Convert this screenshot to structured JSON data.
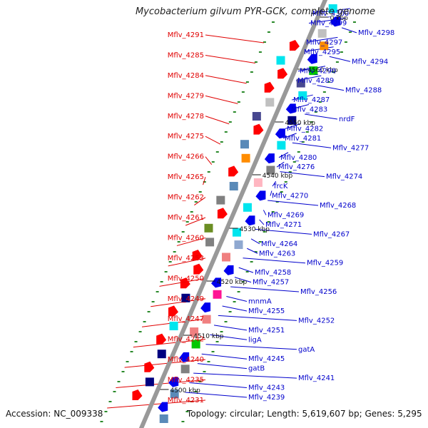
{
  "title": "Mycobacterium gilvum PYR-GCK, complete genome",
  "footer": {
    "accession": "Accession: NC_009338",
    "topology": "Topology: circular; Length: 5,619,607 bp; Genes: 5,295"
  },
  "colors": {
    "forward_label": "#e00000",
    "reverse_label": "#0000cc",
    "backbone": "#999999",
    "tick_dots": "#2a8a2a"
  },
  "ticks": [
    {
      "label": "4500 kbp"
    },
    {
      "label": "4510 kbp"
    },
    {
      "label": "4520 kbp"
    },
    {
      "label": "4530 kbp"
    },
    {
      "label": "4540 kbp"
    },
    {
      "label": "4550 kbp"
    },
    {
      "label": "4560 kbp"
    },
    {
      "label": "0 kbp"
    }
  ],
  "left_labels": [
    {
      "text": "Mflv_4291"
    },
    {
      "text": "Mflv_4285"
    },
    {
      "text": "Mflv_4284"
    },
    {
      "text": "Mflv_4279"
    },
    {
      "text": "Mflv_4278"
    },
    {
      "text": "Mflv_4275"
    },
    {
      "text": "Mflv_4266"
    },
    {
      "text": "Mflv_4265"
    },
    {
      "text": "Mflv_4262"
    },
    {
      "text": "Mflv_4261"
    },
    {
      "text": "Mflv_4260"
    },
    {
      "text": "Mflv_4253"
    },
    {
      "text": "Mflv_4250"
    },
    {
      "text": "Mflv_4249"
    },
    {
      "text": "Mflv_4247"
    },
    {
      "text": "Mflv_4242"
    },
    {
      "text": "Mflv_4240"
    },
    {
      "text": "Mflv_4235"
    },
    {
      "text": "Mflv_4231"
    }
  ],
  "right_labels": [
    {
      "text": "Mflv_4300"
    },
    {
      "text": "Mflv_4299"
    },
    {
      "text": "Mflv_4298"
    },
    {
      "text": "Mflv_4297"
    },
    {
      "text": "Mflv_4295"
    },
    {
      "text": "Mflv_4294"
    },
    {
      "text": "Mflv_4290"
    },
    {
      "text": "Mflv_4289"
    },
    {
      "text": "Mflv_4288"
    },
    {
      "text": "Mflv_4287"
    },
    {
      "text": "Mflv_4283"
    },
    {
      "text": "nrdF"
    },
    {
      "text": "Mflv_4282"
    },
    {
      "text": "Mflv_4281"
    },
    {
      "text": "Mflv_4277"
    },
    {
      "text": "Mflv_4280"
    },
    {
      "text": "Mflv_4276"
    },
    {
      "text": "Mflv_4274"
    },
    {
      "text": "frcK"
    },
    {
      "text": "Mflv_4270"
    },
    {
      "text": "Mflv_4268"
    },
    {
      "text": "Mflv_4269"
    },
    {
      "text": "Mflv_4271"
    },
    {
      "text": "Mflv_4267"
    },
    {
      "text": "Mflv_4264"
    },
    {
      "text": "Mflv_4263"
    },
    {
      "text": "Mflv_4259"
    },
    {
      "text": "Mflv_4258"
    },
    {
      "text": "Mflv_4257"
    },
    {
      "text": "Mflv_4256"
    },
    {
      "text": "mnmA"
    },
    {
      "text": "Mflv_4255"
    },
    {
      "text": "Mflv_4252"
    },
    {
      "text": "Mflv_4251"
    },
    {
      "text": "ligA"
    },
    {
      "text": "gatA"
    },
    {
      "text": "Mflv_4245"
    },
    {
      "text": "gatB"
    },
    {
      "text": "Mflv_4241"
    },
    {
      "text": "Mflv_4243"
    },
    {
      "text": "Mflv_4239"
    }
  ],
  "forward_features": [
    {
      "color": "#ff0000",
      "shape": "arrow"
    },
    {
      "color": "#00e5ee",
      "shape": "box"
    },
    {
      "color": "#ff0000",
      "shape": "arrow"
    },
    {
      "color": "#ff0000",
      "shape": "arrow"
    },
    {
      "color": "#c0c0c0",
      "shape": "box"
    },
    {
      "color": "#484890",
      "shape": "box"
    },
    {
      "color": "#ff0000",
      "shape": "arrow"
    },
    {
      "color": "#5a8ab8",
      "shape": "box"
    },
    {
      "color": "#ff8c00",
      "shape": "box"
    },
    {
      "color": "#ff0000",
      "shape": "arrow"
    },
    {
      "color": "#5a8ab8",
      "shape": "box"
    },
    {
      "color": "#808080",
      "shape": "box"
    },
    {
      "color": "#ff0000",
      "shape": "arrow"
    },
    {
      "color": "#6b8e23",
      "shape": "box"
    },
    {
      "color": "#808080",
      "shape": "box"
    },
    {
      "color": "#ff0000",
      "shape": "arrow"
    },
    {
      "color": "#ff0000",
      "shape": "arrow"
    },
    {
      "color": "#ff0000",
      "shape": "arrow"
    },
    {
      "color": "#000080",
      "shape": "box"
    },
    {
      "color": "#ff0000",
      "shape": "arrow"
    },
    {
      "color": "#00e5ee",
      "shape": "box"
    },
    {
      "color": "#ff0000",
      "shape": "arrow"
    },
    {
      "color": "#000080",
      "shape": "box"
    },
    {
      "color": "#ff0000",
      "shape": "arrow"
    },
    {
      "color": "#000080",
      "shape": "box"
    },
    {
      "color": "#ff0000",
      "shape": "arrow"
    }
  ],
  "reverse_features": [
    {
      "color": "#00e5ee",
      "shape": "box"
    },
    {
      "color": "#0000ee",
      "shape": "arrow"
    },
    {
      "color": "#c0c0c0",
      "shape": "box"
    },
    {
      "color": "#ff8c00",
      "shape": "box"
    },
    {
      "color": "#0000ee",
      "shape": "arrow"
    },
    {
      "color": "#00c800",
      "shape": "box"
    },
    {
      "color": "#484890",
      "shape": "box"
    },
    {
      "color": "#00e5ee",
      "shape": "box"
    },
    {
      "color": "#0000ee",
      "shape": "arrow"
    },
    {
      "color": "#000080",
      "shape": "box"
    },
    {
      "color": "#0000ee",
      "shape": "arrow"
    },
    {
      "color": "#00e5ee",
      "shape": "box"
    },
    {
      "color": "#0000ee",
      "shape": "arrow"
    },
    {
      "color": "#808080",
      "shape": "box"
    },
    {
      "color": "#ffb6c1",
      "shape": "box"
    },
    {
      "color": "#0000ee",
      "shape": "arrow"
    },
    {
      "color": "#00e5ee",
      "shape": "box"
    },
    {
      "color": "#0000ee",
      "shape": "arrow"
    },
    {
      "color": "#00e5ee",
      "shape": "box"
    },
    {
      "color": "#8fa8d0",
      "shape": "box"
    },
    {
      "color": "#f08080",
      "shape": "box"
    },
    {
      "color": "#0000ee",
      "shape": "arrow"
    },
    {
      "color": "#0000ee",
      "shape": "arrow"
    },
    {
      "color": "#ff1493",
      "shape": "box"
    },
    {
      "color": "#0000ee",
      "shape": "arrow"
    },
    {
      "color": "#f08080",
      "shape": "box"
    },
    {
      "color": "#f08080",
      "shape": "box"
    },
    {
      "color": "#00c800",
      "shape": "box"
    },
    {
      "color": "#0000ee",
      "shape": "arrow"
    },
    {
      "color": "#808080",
      "shape": "box"
    },
    {
      "color": "#0000ee",
      "shape": "arrow"
    },
    {
      "color": "#5a8ab8",
      "shape": "box"
    },
    {
      "color": "#0000ee",
      "shape": "arrow"
    },
    {
      "color": "#5a8ab8",
      "shape": "box"
    }
  ]
}
